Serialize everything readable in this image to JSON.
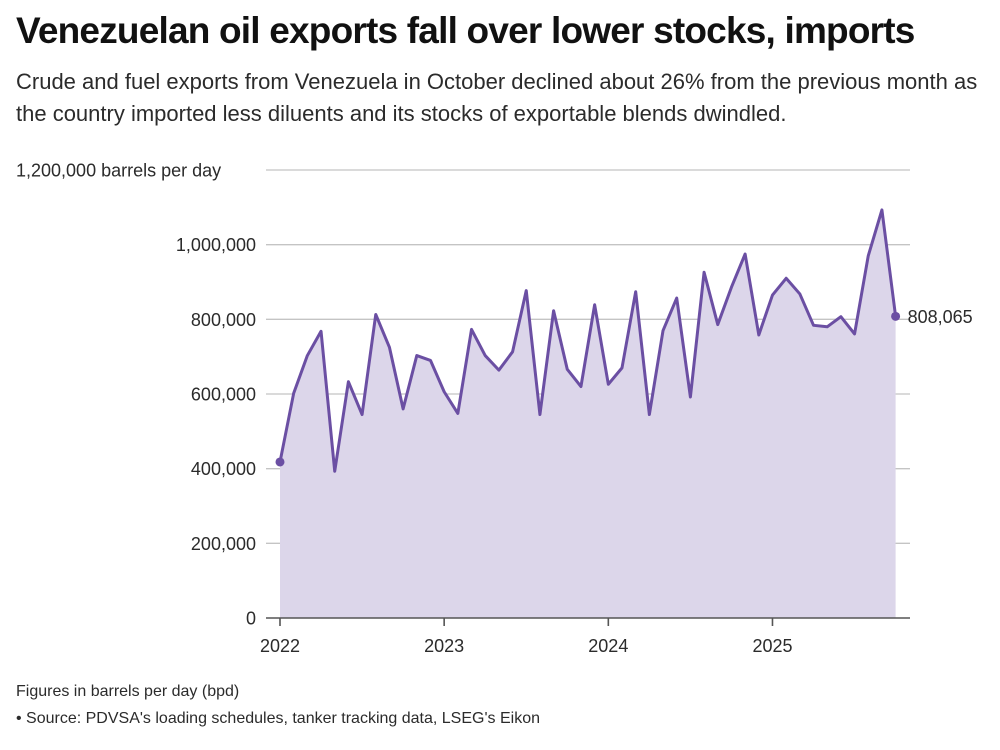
{
  "title": "Venezuelan oil exports fall over lower stocks, imports",
  "subtitle": "Crude and fuel exports from Venezuela in October declined about 26% from the previous month as the country imported less diluents and its stocks of exportable blends dwindled.",
  "footnote": "Figures in barrels per day (bpd)",
  "source": "• Source: PDVSA's loading schedules, tanker tracking data, LSEG's Eikon",
  "colors": {
    "line": "#6b4fa3",
    "area": "#dcd6ea",
    "grid": "#c4c4c4",
    "axis": "#555555"
  },
  "chart_data": {
    "type": "area",
    "ylabel": "barrels per day",
    "ylim": [
      0,
      1200000
    ],
    "yticks": [
      {
        "value": 0,
        "label": "0"
      },
      {
        "value": 200000,
        "label": "200,000"
      },
      {
        "value": 400000,
        "label": "400,000"
      },
      {
        "value": 600000,
        "label": "600,000"
      },
      {
        "value": 800000,
        "label": "800,000"
      },
      {
        "value": 1000000,
        "label": "1,000,000"
      },
      {
        "value": 1200000,
        "label": "1,200,000 barrels per day"
      }
    ],
    "xticks": [
      "2022",
      "2023",
      "2024",
      "2025"
    ],
    "x": [
      "2022-01",
      "2022-02",
      "2022-03",
      "2022-04",
      "2022-05",
      "2022-06",
      "2022-07",
      "2022-08",
      "2022-09",
      "2022-10",
      "2022-11",
      "2022-12",
      "2023-01",
      "2023-02",
      "2023-03",
      "2023-04",
      "2023-05",
      "2023-06",
      "2023-07",
      "2023-08",
      "2023-09",
      "2023-10",
      "2023-11",
      "2023-12",
      "2024-01",
      "2024-02",
      "2024-03",
      "2024-04",
      "2024-05",
      "2024-06",
      "2024-07",
      "2024-08",
      "2024-09",
      "2024-10",
      "2024-11",
      "2024-12",
      "2025-01",
      "2025-02",
      "2025-03",
      "2025-04",
      "2025-05",
      "2025-06",
      "2025-07",
      "2025-08",
      "2025-09",
      "2025-10"
    ],
    "series": [
      {
        "values": [
          418000,
          602000,
          703000,
          768000,
          393000,
          633000,
          545000,
          813000,
          725000,
          560000,
          703000,
          690000,
          606000,
          548000,
          773000,
          703000,
          664000,
          713000,
          877000,
          545000,
          823000,
          666000,
          620000,
          839000,
          626000,
          670000,
          874000,
          545000,
          770000,
          857000,
          592000,
          926000,
          786000,
          886000,
          975000,
          758000,
          865000,
          910000,
          868000,
          784000,
          780000,
          807000,
          761000,
          970000,
          1093000,
          808065
        ]
      }
    ],
    "end_label": "808,065"
  }
}
